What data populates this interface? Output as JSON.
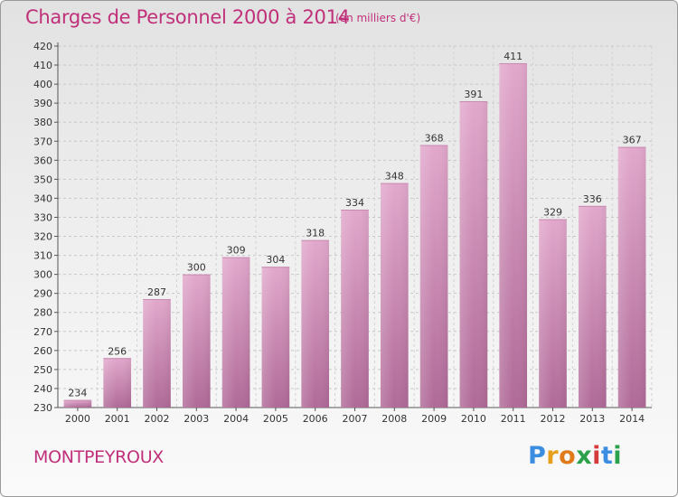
{
  "chart_data": {
    "type": "bar",
    "title": "Charges de Personnel 2000 à 2014",
    "subtitle": "(en milliers d'€)",
    "categories": [
      "2000",
      "2001",
      "2002",
      "2003",
      "2004",
      "2005",
      "2006",
      "2007",
      "2008",
      "2009",
      "2010",
      "2011",
      "2012",
      "2013",
      "2014"
    ],
    "values": [
      234,
      256,
      287,
      300,
      309,
      304,
      318,
      334,
      348,
      368,
      391,
      411,
      329,
      336,
      367
    ],
    "ylim": [
      230,
      420
    ],
    "yticks": [
      230,
      240,
      250,
      260,
      270,
      280,
      290,
      300,
      310,
      320,
      330,
      340,
      350,
      360,
      370,
      380,
      390,
      400,
      410,
      420
    ],
    "grid": true,
    "bar_color": "#e0a0c8",
    "bar_color_dark": "#b06a98"
  },
  "footer": {
    "place": "MONTPEYROUX",
    "logo": [
      "P",
      "r",
      "o",
      "x",
      "i",
      "t",
      "i"
    ]
  }
}
